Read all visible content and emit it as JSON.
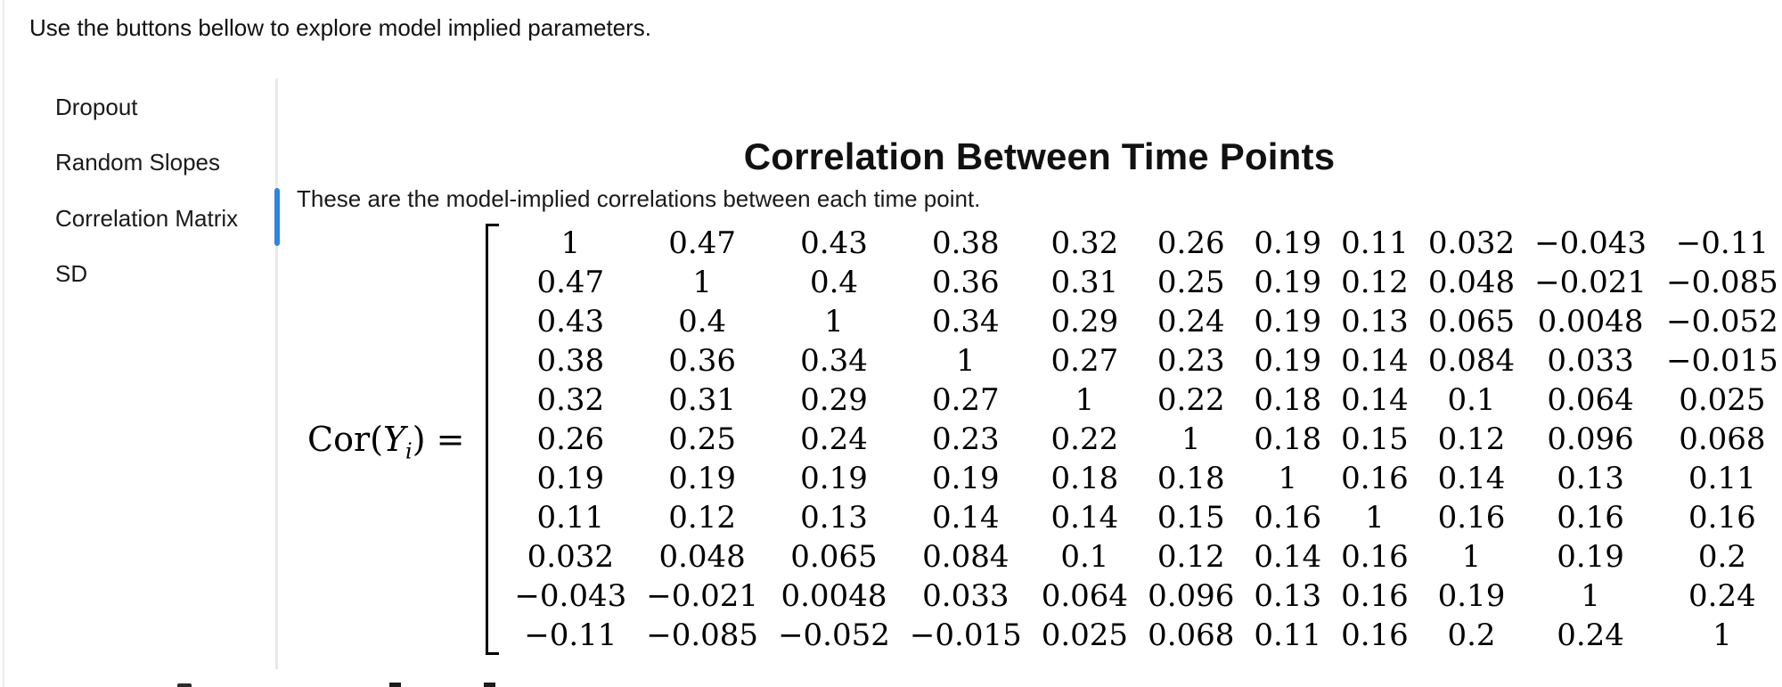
{
  "intro_text": "Use the buttons bellow to explore model implied parameters.",
  "sidebar": {
    "items": [
      {
        "label": "Dropout",
        "active": false
      },
      {
        "label": "Random Slopes",
        "active": false
      },
      {
        "label": "Correlation Matrix",
        "active": true
      },
      {
        "label": "SD",
        "active": false
      }
    ],
    "active_color": "#2f86e2"
  },
  "content": {
    "title": "Correlation Between Time Points",
    "subtitle": "These are the model-implied correlations between each time point.",
    "equation": {
      "func": "Cor",
      "open": "(",
      "var": "Y",
      "sub": "i",
      "close": ")",
      "equals": "="
    },
    "matrix": {
      "rows": [
        [
          "1",
          "0.47",
          "0.43",
          "0.38",
          "0.32",
          "0.26",
          "0.19",
          "0.11",
          "0.032",
          "−0.043",
          "−0.11"
        ],
        [
          "0.47",
          "1",
          "0.4",
          "0.36",
          "0.31",
          "0.25",
          "0.19",
          "0.12",
          "0.048",
          "−0.021",
          "−0.085"
        ],
        [
          "0.43",
          "0.4",
          "1",
          "0.34",
          "0.29",
          "0.24",
          "0.19",
          "0.13",
          "0.065",
          "0.0048",
          "−0.052"
        ],
        [
          "0.38",
          "0.36",
          "0.34",
          "1",
          "0.27",
          "0.23",
          "0.19",
          "0.14",
          "0.084",
          "0.033",
          "−0.015"
        ],
        [
          "0.32",
          "0.31",
          "0.29",
          "0.27",
          "1",
          "0.22",
          "0.18",
          "0.14",
          "0.1",
          "0.064",
          "0.025"
        ],
        [
          "0.26",
          "0.25",
          "0.24",
          "0.23",
          "0.22",
          "1",
          "0.18",
          "0.15",
          "0.12",
          "0.096",
          "0.068"
        ],
        [
          "0.19",
          "0.19",
          "0.19",
          "0.19",
          "0.18",
          "0.18",
          "1",
          "0.16",
          "0.14",
          "0.13",
          "0.11"
        ],
        [
          "0.11",
          "0.12",
          "0.13",
          "0.14",
          "0.14",
          "0.15",
          "0.16",
          "1",
          "0.16",
          "0.16",
          "0.16"
        ],
        [
          "0.032",
          "0.048",
          "0.065",
          "0.084",
          "0.1",
          "0.12",
          "0.14",
          "0.16",
          "1",
          "0.19",
          "0.2"
        ],
        [
          "−0.043",
          "−0.021",
          "0.0048",
          "0.033",
          "0.064",
          "0.096",
          "0.13",
          "0.16",
          "0.19",
          "1",
          "0.24"
        ],
        [
          "−0.11",
          "−0.085",
          "−0.052",
          "−0.015",
          "0.025",
          "0.068",
          "0.11",
          "0.16",
          "0.2",
          "0.24",
          "1"
        ]
      ]
    }
  }
}
